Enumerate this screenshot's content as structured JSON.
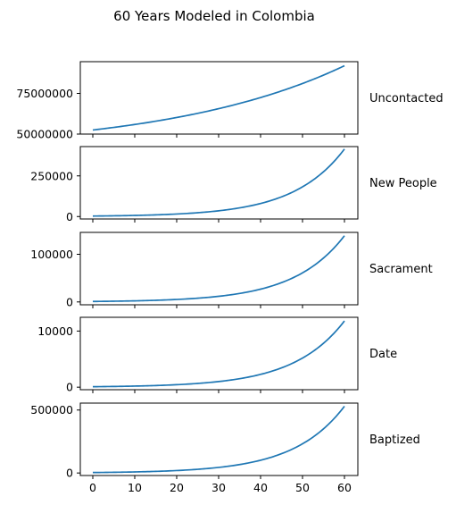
{
  "chart_data": {
    "type": "line",
    "title": "60 Years Modeled in Colombia",
    "line_color": "#1f77b4",
    "x": {
      "start": 0,
      "end": 60,
      "ticks": [
        0,
        10,
        20,
        30,
        40,
        50,
        60
      ],
      "tick_labels": [
        "0",
        "10",
        "20",
        "30",
        "40",
        "50",
        "60"
      ]
    },
    "panels": [
      {
        "name": "Uncontacted",
        "model": "growth",
        "y0": 52500000,
        "y1": 92000000,
        "ylim": [
          50000000,
          94500000
        ],
        "yticks": [
          50000000,
          75000000
        ],
        "ytick_labels": [
          "50000000",
          "75000000"
        ]
      },
      {
        "name": "New People",
        "model": "exp",
        "y0": 3000,
        "y1": 415000,
        "ylim": [
          -15000,
          430000
        ],
        "yticks": [
          0,
          250000
        ],
        "ytick_labels": [
          "0",
          "250000"
        ]
      },
      {
        "name": "Sacrament",
        "model": "exp",
        "y0": 1000,
        "y1": 139000,
        "ylim": [
          -6000,
          146000
        ],
        "yticks": [
          0,
          100000
        ],
        "ytick_labels": [
          "0",
          "100000"
        ]
      },
      {
        "name": "Date",
        "model": "exp",
        "y0": 85,
        "y1": 11800,
        "ylim": [
          -450,
          12450
        ],
        "yticks": [
          0,
          10000
        ],
        "ytick_labels": [
          "0",
          "10000"
        ]
      },
      {
        "name": "Baptized",
        "model": "exp",
        "y0": 3700,
        "y1": 530000,
        "ylim": [
          -20000,
          555000
        ],
        "yticks": [
          0,
          500000
        ],
        "ytick_labels": [
          "0",
          "500000"
        ]
      }
    ]
  }
}
